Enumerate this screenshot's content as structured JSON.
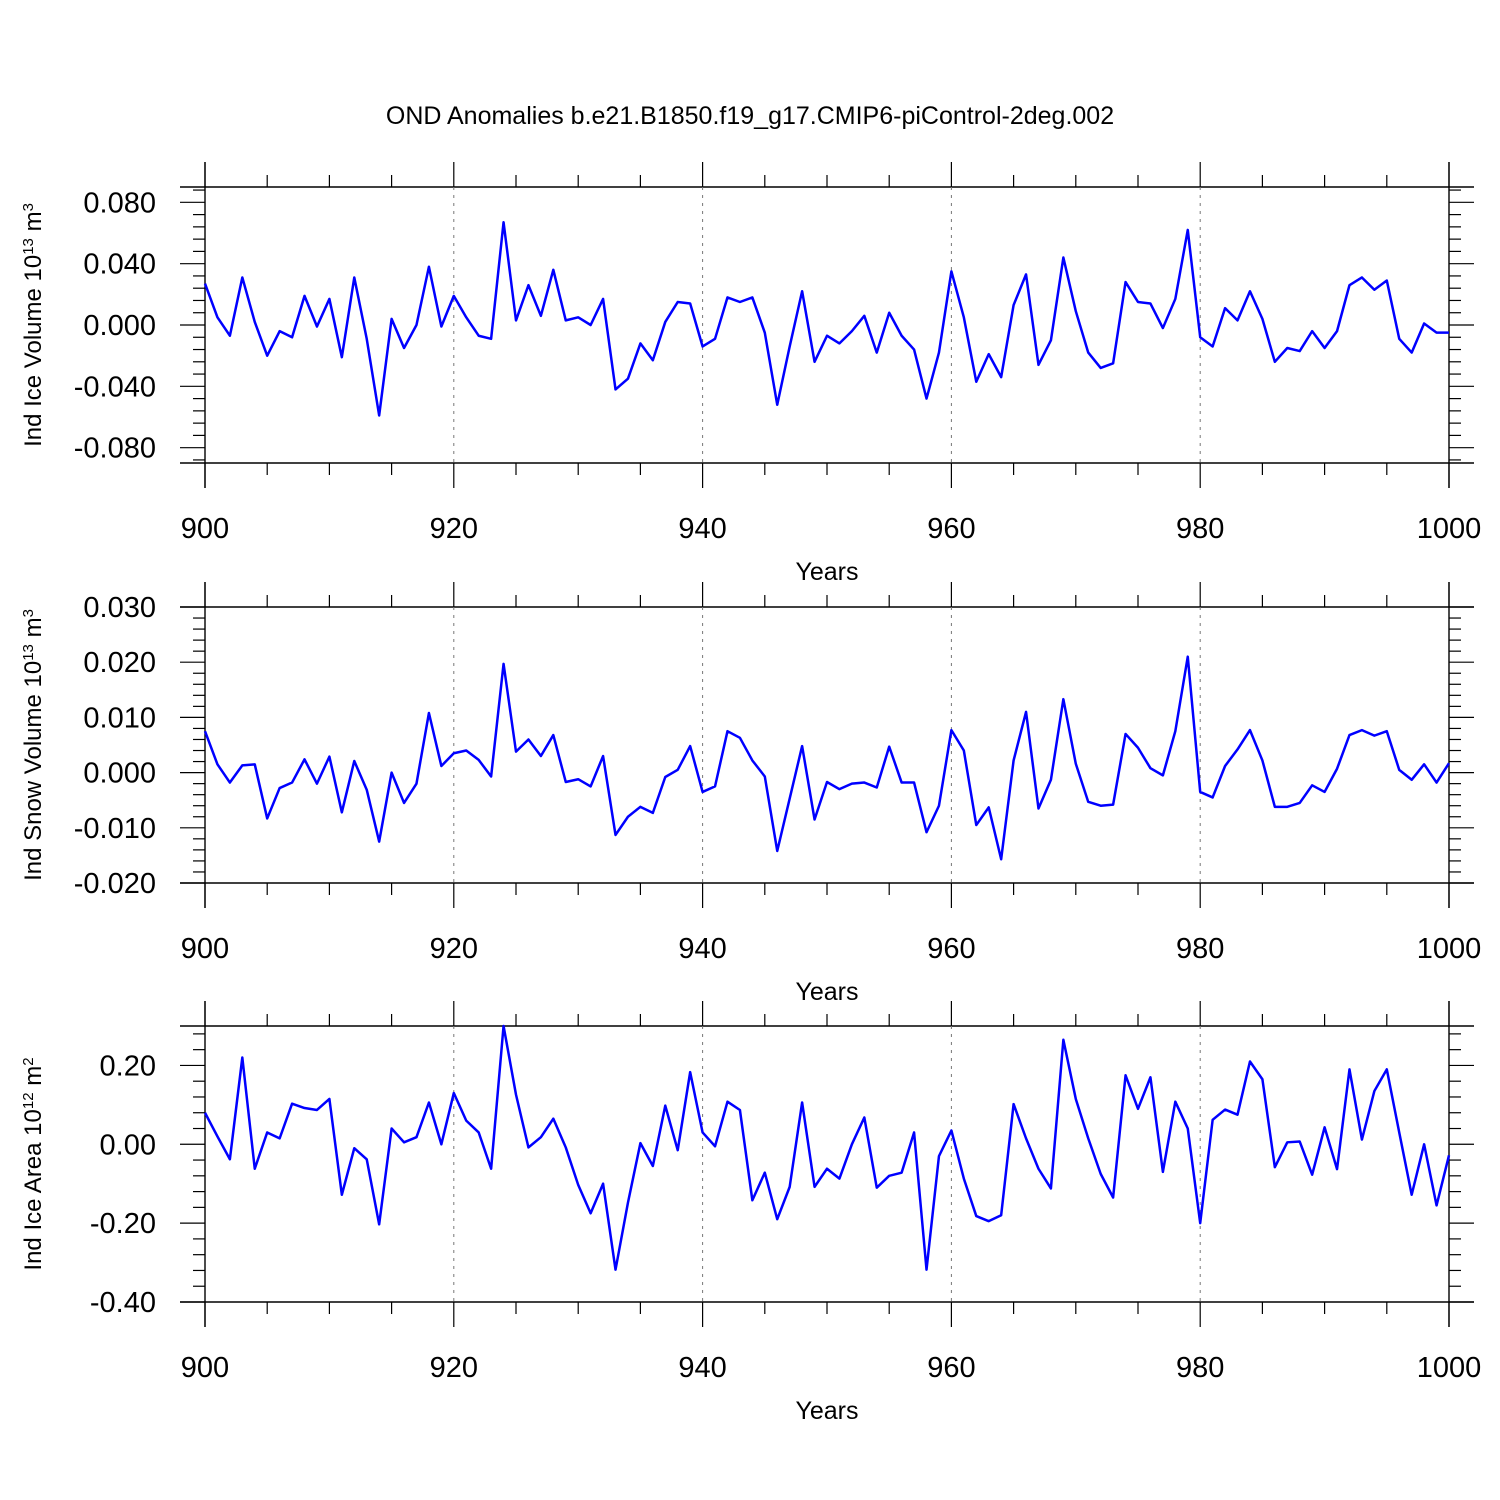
{
  "title": "OND Anomalies b.e21.B1850.f19_g17.CMIP6-piControl-2deg.002",
  "chart_data": [
    {
      "type": "line",
      "ylabel": "Ind Ice Volume 10",
      "ylabel_exp": "13",
      "ylabel_unit": "m",
      "ylabel_unit_exp": "3",
      "xlabel": "Years",
      "xlim": [
        900,
        1000
      ],
      "ylim": [
        -0.09,
        0.09
      ],
      "xticks": [
        900,
        920,
        940,
        960,
        980,
        1000
      ],
      "xtick_labels": [
        "900",
        "920",
        "940",
        "960",
        "980",
        "1000"
      ],
      "yticks": [
        -0.08,
        -0.04,
        0.0,
        0.04,
        0.08
      ],
      "ytick_labels": [
        "-0.080",
        "-0.040",
        "0.000",
        "0.040",
        "0.080"
      ],
      "color": "#0000ff",
      "x_start": 900,
      "values": [
        0.027,
        0.005,
        -0.007,
        0.031,
        0.002,
        -0.02,
        -0.004,
        -0.008,
        0.019,
        -0.001,
        0.017,
        -0.021,
        0.031,
        -0.009,
        -0.059,
        0.004,
        -0.015,
        0.0,
        0.038,
        -0.001,
        0.019,
        0.005,
        -0.007,
        -0.009,
        0.067,
        0.003,
        0.026,
        0.006,
        0.036,
        0.003,
        0.005,
        0.0,
        0.017,
        -0.042,
        -0.035,
        -0.012,
        -0.023,
        0.002,
        0.015,
        0.014,
        -0.014,
        -0.009,
        0.018,
        0.015,
        0.018,
        -0.005,
        -0.052,
        -0.014,
        0.022,
        -0.024,
        -0.007,
        -0.012,
        -0.004,
        0.006,
        -0.018,
        0.008,
        -0.007,
        -0.016,
        -0.048,
        -0.018,
        0.035,
        0.005,
        -0.037,
        -0.019,
        -0.034,
        0.013,
        0.033,
        -0.026,
        -0.01,
        0.044,
        0.009,
        -0.018,
        -0.028,
        -0.025,
        0.028,
        0.015,
        0.014,
        -0.002,
        0.017,
        0.062,
        -0.008,
        -0.014,
        0.011,
        0.003,
        0.022,
        0.004,
        -0.024,
        -0.015,
        -0.017,
        -0.004,
        -0.015,
        -0.004,
        0.026,
        0.031,
        0.023,
        0.029,
        -0.009,
        -0.018,
        0.001,
        -0.005,
        -0.005
      ]
    },
    {
      "type": "line",
      "ylabel": "Ind Snow Volume 10",
      "ylabel_exp": "13",
      "ylabel_unit": "m",
      "ylabel_unit_exp": "3",
      "xlabel": "Years",
      "xlim": [
        900,
        1000
      ],
      "ylim": [
        -0.02,
        0.03
      ],
      "xticks": [
        900,
        920,
        940,
        960,
        980,
        1000
      ],
      "xtick_labels": [
        "900",
        "920",
        "940",
        "960",
        "980",
        "1000"
      ],
      "yticks": [
        -0.02,
        -0.01,
        0.0,
        0.01,
        0.02,
        0.03
      ],
      "ytick_labels": [
        "-0.020",
        "-0.010",
        "0.000",
        "0.010",
        "0.020",
        "0.030"
      ],
      "color": "#0000ff",
      "x_start": 900,
      "values": [
        0.0075,
        0.0015,
        -0.0018,
        0.0013,
        0.0015,
        -0.0083,
        -0.0028,
        -0.0018,
        0.0024,
        -0.002,
        0.0029,
        -0.0072,
        0.0021,
        -0.0031,
        -0.0125,
        0.0,
        -0.0055,
        -0.002,
        0.0108,
        0.0012,
        0.0035,
        0.004,
        0.0023,
        -0.0007,
        0.0197,
        0.0038,
        0.006,
        0.003,
        0.0068,
        -0.0017,
        -0.0012,
        -0.0025,
        0.003,
        -0.0113,
        -0.008,
        -0.0062,
        -0.0073,
        -0.0008,
        0.0005,
        0.0048,
        -0.0035,
        -0.0025,
        0.0075,
        0.0063,
        0.0022,
        -0.0007,
        -0.0142,
        -0.0047,
        0.0048,
        -0.0085,
        -0.0017,
        -0.003,
        -0.002,
        -0.0018,
        -0.0027,
        0.0047,
        -0.0018,
        -0.0018,
        -0.0108,
        -0.006,
        0.0077,
        0.004,
        -0.0095,
        -0.0063,
        -0.0157,
        0.0022,
        0.011,
        -0.0065,
        -0.0013,
        0.0133,
        0.0016,
        -0.0053,
        -0.006,
        -0.0058,
        0.007,
        0.0045,
        0.0008,
        -0.0005,
        0.0075,
        0.021,
        -0.0035,
        -0.0045,
        0.0012,
        0.0042,
        0.0077,
        0.0022,
        -0.0062,
        -0.0062,
        -0.0055,
        -0.0023,
        -0.0035,
        0.0007,
        0.0068,
        0.0077,
        0.0067,
        0.0075,
        0.0005,
        -0.0013,
        0.0015,
        -0.0018,
        0.0017
      ]
    },
    {
      "type": "line",
      "ylabel": "Ind Ice Area 10",
      "ylabel_exp": "12",
      "ylabel_unit": "m",
      "ylabel_unit_exp": "2",
      "xlabel": "Years",
      "xlim": [
        900,
        1000
      ],
      "ylim": [
        -0.4,
        0.3
      ],
      "xticks": [
        900,
        920,
        940,
        960,
        980,
        1000
      ],
      "xtick_labels": [
        "900",
        "920",
        "940",
        "960",
        "980",
        "1000"
      ],
      "yticks": [
        -0.4,
        -0.2,
        0.0,
        0.2
      ],
      "ytick_labels": [
        "-0.40",
        "-0.20",
        "0.00",
        "0.20"
      ],
      "color": "#0000ff",
      "x_start": 900,
      "values": [
        0.08,
        0.02,
        -0.038,
        0.22,
        -0.062,
        0.03,
        0.015,
        0.103,
        0.092,
        0.087,
        0.115,
        -0.128,
        -0.01,
        -0.038,
        -0.203,
        0.04,
        0.005,
        0.018,
        0.106,
        0.0,
        0.13,
        0.06,
        0.03,
        -0.062,
        0.3,
        0.126,
        -0.008,
        0.018,
        0.065,
        -0.008,
        -0.103,
        -0.175,
        -0.1,
        -0.318,
        -0.148,
        0.003,
        -0.055,
        0.098,
        -0.015,
        0.183,
        0.03,
        -0.005,
        0.108,
        0.087,
        -0.142,
        -0.072,
        -0.19,
        -0.108,
        0.106,
        -0.108,
        -0.062,
        -0.087,
        0.0,
        0.068,
        -0.11,
        -0.08,
        -0.072,
        0.03,
        -0.318,
        -0.03,
        0.035,
        -0.087,
        -0.182,
        -0.195,
        -0.18,
        0.102,
        0.015,
        -0.062,
        -0.112,
        0.265,
        0.115,
        0.015,
        -0.075,
        -0.135,
        0.175,
        0.09,
        0.17,
        -0.07,
        0.108,
        0.04,
        -0.2,
        0.062,
        0.088,
        0.075,
        0.21,
        0.165,
        -0.058,
        0.005,
        0.007,
        -0.077,
        0.043,
        -0.063,
        0.19,
        0.012,
        0.135,
        0.19,
        0.03,
        -0.128,
        0.0,
        -0.155,
        -0.028
      ]
    }
  ]
}
